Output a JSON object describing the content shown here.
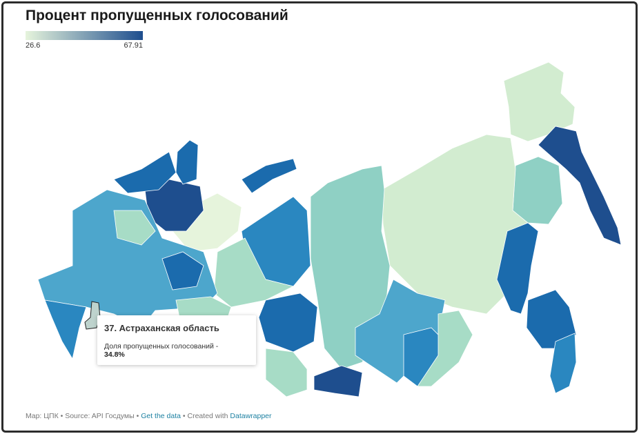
{
  "header": {
    "title": "Процент пропущенных голосований"
  },
  "legend": {
    "min": 26.6,
    "max": 67.91,
    "colors": [
      "#e6f4dc",
      "#1e4e8e"
    ]
  },
  "tooltip": {
    "region": "37. Астраханская область",
    "metric": "Доля пропущенных голосований -",
    "value": 34.8,
    "value_label": "34.8%"
  },
  "footer": {
    "map": "Map: ЦПК",
    "source": "Source: API Госдумы",
    "data_link": "Get the data",
    "created": "Created with",
    "tool_link": "Datawrapper"
  }
}
